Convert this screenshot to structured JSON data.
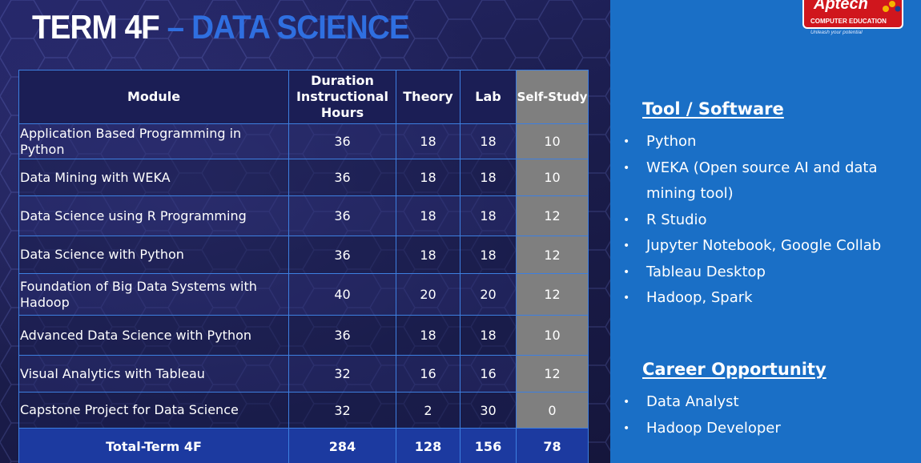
{
  "title": {
    "part1": "TERM 4F",
    "dash": "–",
    "part2": "DATA SCIENCE"
  },
  "colors": {
    "title_accent": "#2f6fe0",
    "right_panel": "#1a6fc6",
    "self_study_bg": "#7f7f7f",
    "table_border": "#3d7fe0",
    "total_row": "#1c3aa0"
  },
  "logo": {
    "brand": "Aptech",
    "subtitle": "COMPUTER EDUCATION",
    "tagline": "Unleash your potential"
  },
  "table": {
    "headers": {
      "module": "Module",
      "duration_line1": "Duration",
      "duration_line2": "Instructional",
      "duration_line3": "Hours",
      "theory": "Theory",
      "lab": "Lab",
      "self_study": "Self-Study"
    },
    "rows": [
      {
        "module": "Application Based Programming in Python",
        "duration": "36",
        "theory": "18",
        "lab": "18",
        "self_study": "10"
      },
      {
        "module": "Data Mining with WEKA",
        "duration": "36",
        "theory": "18",
        "lab": "18",
        "self_study": "10"
      },
      {
        "module": "Data Science using R Programming",
        "duration": "36",
        "theory": "18",
        "lab": "18",
        "self_study": "12"
      },
      {
        "module": "Data Science with Python",
        "duration": "36",
        "theory": "18",
        "lab": "18",
        "self_study": "12"
      },
      {
        "module": "Foundation of Big Data Systems with Hadoop",
        "duration": "40",
        "theory": "20",
        "lab": "20",
        "self_study": "12"
      },
      {
        "module": "Advanced Data Science with Python",
        "duration": "36",
        "theory": "18",
        "lab": "18",
        "self_study": "10"
      },
      {
        "module": "Visual Analytics with Tableau",
        "duration": "32",
        "theory": "16",
        "lab": "16",
        "self_study": "12"
      },
      {
        "module": "Capstone Project for Data Science",
        "duration": "32",
        "theory": "2",
        "lab": "30",
        "self_study": "0"
      }
    ],
    "total": {
      "label": "Total-Term 4F",
      "duration": "284",
      "theory": "128",
      "lab": "156",
      "self_study": "78"
    }
  },
  "tools": {
    "heading": "Tool / Software",
    "items": [
      "Python",
      "WEKA (Open source AI and data mining tool)",
      "R Studio",
      "Jupyter Notebook, Google Collab",
      "Tableau Desktop",
      "Hadoop, Spark"
    ]
  },
  "career": {
    "heading": "Career Opportunity",
    "items": [
      "Data Analyst",
      "Hadoop Developer"
    ]
  },
  "bullet": "•"
}
